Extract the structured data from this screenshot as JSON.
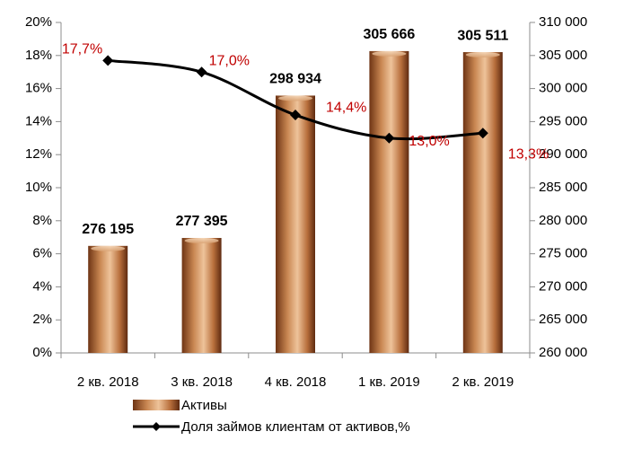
{
  "chart_data": {
    "type": "combo",
    "categories": [
      "2 кв. 2018",
      "3 кв. 2018",
      "4 кв. 2018",
      "1 кв. 2019",
      "2 кв. 2019"
    ],
    "series": [
      {
        "name": "Активы",
        "type": "bar",
        "axis": "y2",
        "color": "#b8703d",
        "values": [
          276195,
          277395,
          298934,
          305666,
          305511
        ],
        "value_labels": [
          "276 195",
          "277 395",
          "298 934",
          "305 666",
          "305 511"
        ]
      },
      {
        "name": "Доля займов клиентам от активов,%",
        "type": "line",
        "axis": "y",
        "color": "#000000",
        "values": [
          17.7,
          17.0,
          14.4,
          13.0,
          13.3
        ],
        "value_labels": [
          "17,7%",
          "17,0%",
          "14,4%",
          "13,0%",
          "13,3%"
        ]
      }
    ],
    "ylim": [
      0,
      20
    ],
    "yticks": [
      {
        "value": 0,
        "label": "0%"
      },
      {
        "value": 2,
        "label": "2%"
      },
      {
        "value": 4,
        "label": "4%"
      },
      {
        "value": 6,
        "label": "6%"
      },
      {
        "value": 8,
        "label": "8%"
      },
      {
        "value": 10,
        "label": "10%"
      },
      {
        "value": 12,
        "label": "12%"
      },
      {
        "value": 14,
        "label": "14%"
      },
      {
        "value": 16,
        "label": "16%"
      },
      {
        "value": 18,
        "label": "18%"
      },
      {
        "value": 20,
        "label": "20%"
      }
    ],
    "y2lim": [
      260000,
      310000
    ],
    "y2ticks": [
      {
        "value": 260000,
        "label": "260 000"
      },
      {
        "value": 265000,
        "label": "265 000"
      },
      {
        "value": 270000,
        "label": "270 000"
      },
      {
        "value": 275000,
        "label": "275 000"
      },
      {
        "value": 280000,
        "label": "280 000"
      },
      {
        "value": 285000,
        "label": "285 000"
      },
      {
        "value": 290000,
        "label": "290 000"
      },
      {
        "value": 295000,
        "label": "295 000"
      },
      {
        "value": 300000,
        "label": "300 000"
      },
      {
        "value": 305000,
        "label": "305 000"
      },
      {
        "value": 310000,
        "label": "310 000"
      }
    ],
    "line_label_color": "#c00000",
    "legend": "bottom"
  }
}
